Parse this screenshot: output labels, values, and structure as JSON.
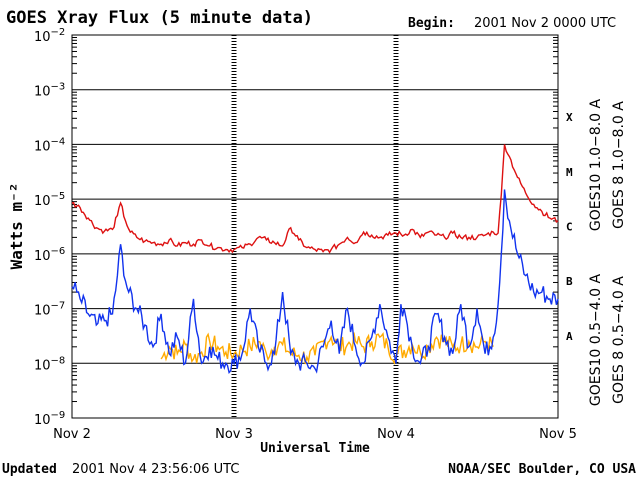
{
  "colors": {
    "goes10_long": "#7733bb",
    "goes8_long": "#dd1111",
    "goes10_short": "#ffaa00",
    "goes8_short": "#1133ee",
    "grid": "#000000"
  },
  "header": {
    "title": "GOES Xray Flux (5 minute data)",
    "begin_label": "Begin:",
    "begin_value": "2001 Nov 2 0000 UTC"
  },
  "footer": {
    "updated_label": "Updated",
    "updated_value": "2001 Nov  4 23:56:06 UTC",
    "source": "NOAA/SEC Boulder, CO USA"
  },
  "chart_data": {
    "type": "line",
    "title": "GOES Xray Flux (5 minute data)",
    "xlabel": "Universal Time",
    "ylabel": "Watts m⁻²",
    "y_scale": "log",
    "ylim": [
      1e-09,
      0.01
    ],
    "xlim_days": [
      0,
      3
    ],
    "grid": true,
    "x_tick_labels": [
      "Nov 2",
      "Nov 3",
      "Nov 4",
      "Nov 5"
    ],
    "y_tick_labels": [
      {
        "base": "10",
        "exp": "−9"
      },
      {
        "base": "10",
        "exp": "−8"
      },
      {
        "base": "10",
        "exp": "−7"
      },
      {
        "base": "10",
        "exp": "−6"
      },
      {
        "base": "10",
        "exp": "−5"
      },
      {
        "base": "10",
        "exp": "−4"
      },
      {
        "base": "10",
        "exp": "−3"
      },
      {
        "base": "10",
        "exp": "−2"
      }
    ],
    "flare_classes": [
      {
        "label": "X",
        "log": -3.5
      },
      {
        "label": "M",
        "log": -4.5
      },
      {
        "label": "C",
        "log": -5.5
      },
      {
        "label": "B",
        "log": -6.5
      },
      {
        "label": "A",
        "log": -7.5
      }
    ],
    "legend": [
      "GOES10 1.0−8.0 A",
      "GOES 8 1.0−8.0 A",
      "GOES10 0.5−4.0 A",
      "GOES 8 0.5−4.0 A"
    ],
    "series": [
      {
        "name": "GOES 8 1.0-8.0 A",
        "x": [
          0,
          0.05,
          0.1,
          0.15,
          0.2,
          0.25,
          0.28,
          0.3,
          0.33,
          0.36,
          0.4,
          0.45,
          0.5,
          0.55,
          0.6,
          0.65,
          0.7,
          0.75,
          0.8,
          0.85,
          0.9,
          0.95,
          1.0,
          1.05,
          1.1,
          1.15,
          1.2,
          1.25,
          1.3,
          1.35,
          1.4,
          1.45,
          1.5,
          1.55,
          1.6,
          1.65,
          1.7,
          1.75,
          1.8,
          1.85,
          1.9,
          1.95,
          2.0,
          2.05,
          2.1,
          2.15,
          2.2,
          2.25,
          2.3,
          2.35,
          2.4,
          2.45,
          2.5,
          2.55,
          2.6,
          2.63,
          2.65,
          2.67,
          2.7,
          2.75,
          2.8,
          2.85,
          2.9,
          2.95,
          3.0
        ],
        "values": [
          8.5e-06,
          7e-06,
          4.5e-06,
          3e-06,
          2.6e-06,
          2.8e-06,
          5e-06,
          8.5e-06,
          4e-06,
          2.5e-06,
          2e-06,
          1.7e-06,
          1.6e-06,
          1.5e-06,
          1.8e-06,
          1.4e-06,
          1.6e-06,
          1.5e-06,
          1.8e-06,
          1.4e-06,
          1.3e-06,
          1.2e-06,
          1.2e-06,
          1.3e-06,
          1.5e-06,
          2e-06,
          1.8e-06,
          1.6e-06,
          1.4e-06,
          3e-06,
          1.8e-06,
          1.3e-06,
          1.2e-06,
          1.1e-06,
          1.2e-06,
          1.5e-06,
          2e-06,
          1.6e-06,
          2.5e-06,
          2.2e-06,
          2e-06,
          2.2e-06,
          2.4e-06,
          2.2e-06,
          2.8e-06,
          2e-06,
          2.5e-06,
          2.2e-06,
          2e-06,
          2.4e-06,
          2e-06,
          2e-06,
          2e-06,
          2.2e-06,
          2.5e-06,
          2.4e-06,
          1.2e-05,
          0.0001,
          6e-05,
          2.5e-05,
          1.3e-05,
          8e-06,
          6e-06,
          4.5e-06,
          4e-06
        ]
      },
      {
        "name": "GOES 8 0.5-4.0 A",
        "x": [
          0,
          0.03,
          0.05,
          0.1,
          0.15,
          0.2,
          0.25,
          0.28,
          0.3,
          0.32,
          0.35,
          0.4,
          0.45,
          0.5,
          0.55,
          0.6,
          0.65,
          0.7,
          0.75,
          0.8,
          0.85,
          0.9,
          0.95,
          1.0,
          1.05,
          1.1,
          1.15,
          1.2,
          1.25,
          1.3,
          1.35,
          1.4,
          1.45,
          1.5,
          1.55,
          1.6,
          1.65,
          1.7,
          1.75,
          1.8,
          1.85,
          1.9,
          1.95,
          2.0,
          2.03,
          2.05,
          2.1,
          2.15,
          2.2,
          2.25,
          2.3,
          2.35,
          2.4,
          2.45,
          2.5,
          2.55,
          2.6,
          2.63,
          2.65,
          2.67,
          2.7,
          2.75,
          2.8,
          2.85,
          2.9,
          2.95,
          3.0
        ],
        "values": [
          2.5e-07,
          2e-07,
          1.5e-07,
          8e-08,
          5e-08,
          6e-08,
          8e-08,
          4e-07,
          1.5e-06,
          4e-07,
          2e-07,
          1e-07,
          5e-08,
          2e-08,
          8e-08,
          1.5e-08,
          3e-08,
          1e-08,
          1.5e-07,
          1e-08,
          2e-08,
          1.2e-08,
          1e-08,
          1e-08,
          1.5e-08,
          1e-07,
          2e-08,
          1e-08,
          1.5e-08,
          2e-07,
          1.5e-08,
          1e-08,
          1e-08,
          8e-09,
          2e-08,
          6e-08,
          1.5e-08,
          1e-07,
          2e-08,
          1e-08,
          3e-08,
          1.2e-07,
          3e-08,
          1e-08,
          1.2e-07,
          1e-07,
          2e-08,
          1e-08,
          2e-08,
          8e-08,
          3e-08,
          1.5e-08,
          1.2e-07,
          2e-08,
          1e-07,
          1.5e-08,
          3e-08,
          1.2e-07,
          1e-06,
          1.5e-05,
          4e-06,
          1e-06,
          4e-07,
          2e-07,
          2e-07,
          1.5e-07,
          1.5e-07
        ]
      },
      {
        "name": "GOES10 0.5-4.0 A",
        "x": [
          0.55,
          0.6,
          0.65,
          0.7,
          0.75,
          0.8,
          0.85,
          0.9,
          0.95,
          1.0,
          1.05,
          1.1,
          1.15,
          1.2,
          1.25,
          1.3,
          1.35,
          1.4,
          1.45,
          1.5,
          1.55,
          1.6,
          1.65,
          1.7,
          1.75,
          1.8,
          1.85,
          1.9,
          1.95,
          2.0,
          2.1,
          2.15,
          2.2,
          2.25,
          2.3,
          2.35,
          2.4,
          2.45,
          2.5,
          2.55,
          2.6
        ],
        "values": [
          1.2e-08,
          2e-08,
          1.5e-08,
          2.2e-08,
          1.2e-08,
          1.6e-08,
          2.5e-08,
          2e-08,
          1.6e-08,
          1.5e-08,
          1.8e-08,
          2e-08,
          2.5e-08,
          1.5e-08,
          2e-08,
          2.2e-08,
          1.5e-08,
          1.4e-08,
          1.3e-08,
          1.4e-08,
          2.5e-08,
          3e-08,
          2e-08,
          2.2e-08,
          2.5e-08,
          2e-08,
          2.5e-08,
          3e-08,
          2e-08,
          1.4e-08,
          2.2e-08,
          1.6e-08,
          2e-08,
          3e-08,
          2.5e-08,
          2e-08,
          2.2e-08,
          2.5e-08,
          2e-08,
          2.5e-08,
          2e-08
        ]
      }
    ]
  }
}
